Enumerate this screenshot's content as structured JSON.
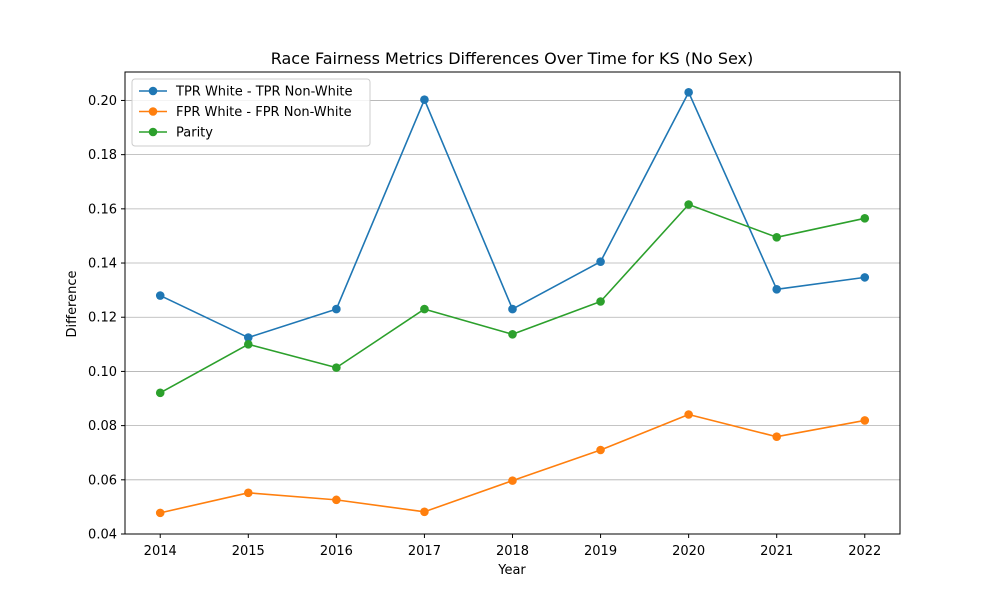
{
  "chart_data": {
    "type": "line",
    "title": "Race Fairness Metrics Differences Over Time for KS (No Sex)",
    "xlabel": "Year",
    "ylabel": "Difference",
    "x": [
      2014,
      2015,
      2016,
      2017,
      2018,
      2019,
      2020,
      2021,
      2022
    ],
    "x_tick_labels": [
      "2014",
      "2015",
      "2016",
      "2017",
      "2018",
      "2019",
      "2020",
      "2021",
      "2022"
    ],
    "y_ticks": [
      0.04,
      0.06,
      0.08,
      0.1,
      0.12,
      0.14,
      0.16,
      0.18,
      0.2
    ],
    "y_tick_labels": [
      "0.04",
      "0.06",
      "0.08",
      "0.10",
      "0.12",
      "0.14",
      "0.16",
      "0.18",
      "0.20"
    ],
    "xlim": [
      2013.6,
      2022.4
    ],
    "ylim": [
      0.04,
      0.2105
    ],
    "grid": "horizontal",
    "legend_position": "top-left",
    "series": [
      {
        "name": "TPR White - TPR Non-White",
        "color": "#1f77b4",
        "values": [
          0.128,
          0.1125,
          0.123,
          0.2003,
          0.123,
          0.1405,
          0.203,
          0.1303,
          0.1347
        ]
      },
      {
        "name": "FPR White - FPR Non-White",
        "color": "#ff7f0e",
        "values": [
          0.0478,
          0.0552,
          0.0526,
          0.0482,
          0.0597,
          0.071,
          0.0841,
          0.0759,
          0.0819
        ]
      },
      {
        "name": "Parity",
        "color": "#2ca02c",
        "values": [
          0.0921,
          0.11,
          0.1014,
          0.123,
          0.1137,
          0.1258,
          0.1616,
          0.1495,
          0.1565
        ]
      }
    ]
  }
}
